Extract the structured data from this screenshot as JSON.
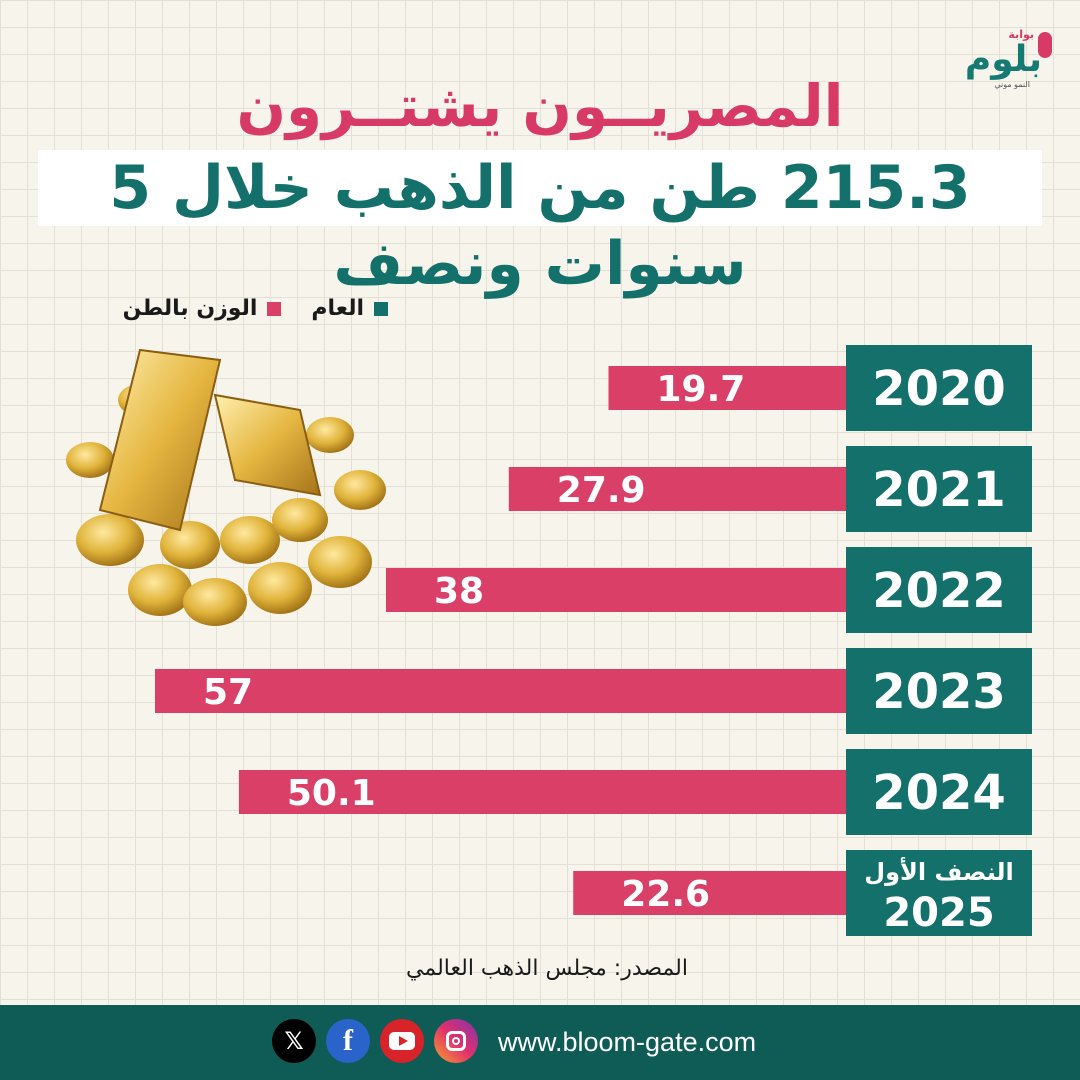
{
  "brand": {
    "top": "بوابة",
    "name": "بلوم",
    "tagline": "النمو موني"
  },
  "header": {
    "line1": "المصريــون يشتــرون",
    "line2": "215.3 طن من الذهب خلال 5 سنوات ونصف"
  },
  "legend": {
    "year_label": "العام",
    "weight_label": "الوزن بالطن"
  },
  "colors": {
    "year_teal": "#14706a",
    "bar_pink": "#da3f68",
    "footer_teal": "#0f5b55"
  },
  "chart_data": {
    "type": "bar",
    "orientation": "horizontal",
    "categories": [
      "2020",
      "2021",
      "2022",
      "2023",
      "2024",
      "النصف الأول 2025"
    ],
    "category_lines": [
      [
        "2020"
      ],
      [
        "2021"
      ],
      [
        "2022"
      ],
      [
        "2023"
      ],
      [
        "2024"
      ],
      [
        "النصف الأول",
        "2025"
      ]
    ],
    "values": [
      19.7,
      27.9,
      38,
      57,
      50.1,
      22.6
    ],
    "value_labels": [
      "19.7",
      "27.9",
      "38",
      "57",
      "50.1",
      "22.6"
    ],
    "unit": "طن",
    "xlim": [
      0,
      57
    ]
  },
  "source": "المصدر: مجلس الذهب العالمي",
  "footer": {
    "website": "www.bloom-gate.com",
    "icons": [
      "x-icon",
      "facebook-icon",
      "youtube-icon",
      "instagram-icon"
    ],
    "x_glyph": "𝕏",
    "fb_glyph": "f"
  }
}
